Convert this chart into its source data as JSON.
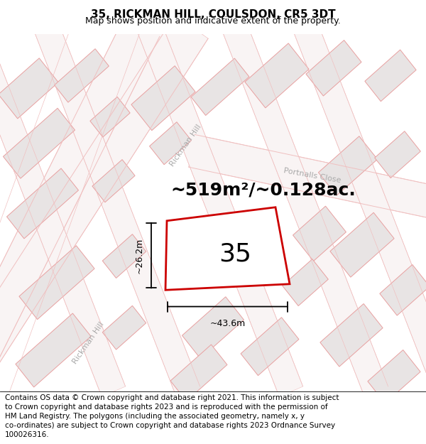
{
  "title": "35, RICKMAN HILL, COULSDON, CR5 3DT",
  "subtitle": "Map shows position and indicative extent of the property.",
  "area_text": "~519m²/~0.128ac.",
  "property_number": "35",
  "dim_width": "~43.6m",
  "dim_height": "~26.2m",
  "footer_lines": [
    "Contains OS data © Crown copyright and database right 2021. This information is subject",
    "to Crown copyright and database rights 2023 and is reproduced with the permission of",
    "HM Land Registry. The polygons (including the associated geometry, namely x, y",
    "co-ordinates) are subject to Crown copyright and database rights 2023 Ordnance Survey",
    "100026316."
  ],
  "map_bg": "#ffffff",
  "building_fill": "#e8e4e4",
  "building_edge": "#e8a0a0",
  "road_outline": "#f0c0c0",
  "road_fill": "#faf5f5",
  "property_fill": "#ffffff",
  "property_stroke": "#cc0000",
  "street_label_color": "#aaaaaa",
  "portnalls_label_color": "#aaaaaa",
  "dim_color": "#111111",
  "title_fontsize": 11,
  "subtitle_fontsize": 9,
  "footer_fontsize": 7.5,
  "area_fontsize": 18,
  "number_fontsize": 26,
  "street_fontsize": 8
}
